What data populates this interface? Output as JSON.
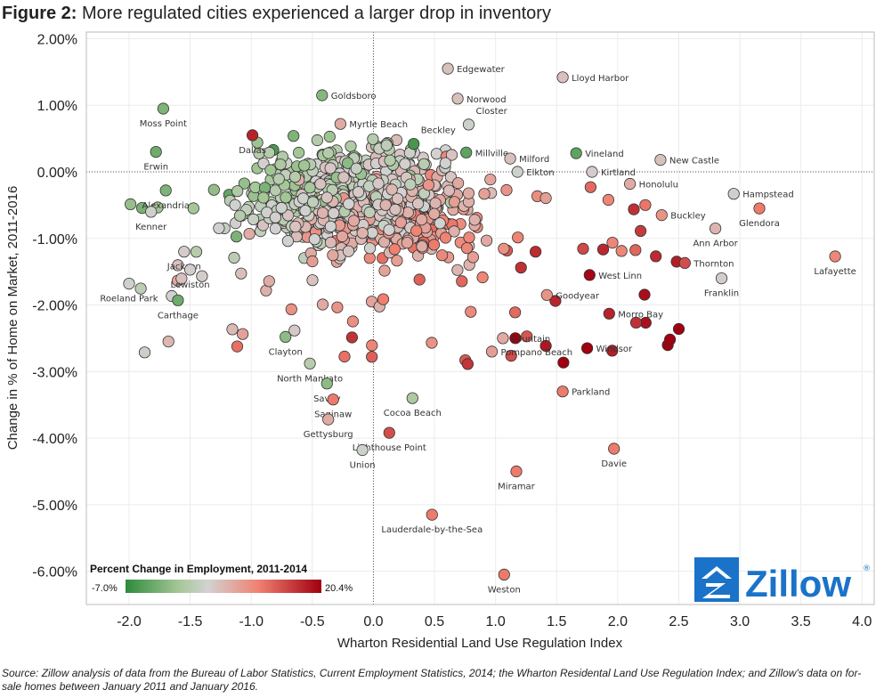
{
  "header": {
    "figure_label": "Figure 2:",
    "title_text": "More regulated cities experienced a larger drop in inventory"
  },
  "source": {
    "label": "Source:",
    "text": "Zillow analysis of data from the Bureau of Labor Statistics, Current Employment Statistics, 2014; the Wharton Residental Land Use Regulation Index; and Zillow's data on for-sale homes between January 2011 and January 2016."
  },
  "legend": {
    "title": "Percent Change in Employment, 2011-2014",
    "min_label": "-7.0%",
    "max_label": "20.4%",
    "colors": [
      "#2e8b3a",
      "#a8c89a",
      "#cccccc",
      "#f08070",
      "#a00010"
    ]
  },
  "logo": {
    "text": "Zillow",
    "color": "#1a73c9"
  },
  "chart_data": {
    "type": "scatter",
    "xlabel": "Wharton Residential Land Use Regulation Index",
    "ylabel": "Change in % of Home on Market, 2011-2016",
    "xlim": [
      -2.35,
      4.1
    ],
    "ylim": [
      -6.5,
      2.1
    ],
    "x_ticks": [
      -2.0,
      -1.5,
      -1.0,
      -0.5,
      0.0,
      0.5,
      1.0,
      1.5,
      2.0,
      2.5,
      3.0,
      3.5,
      4.0
    ],
    "x_tick_labels": [
      "-2.0",
      "-1.5",
      "-1.0",
      "-0.5",
      "0.0",
      "0.5",
      "1.0",
      "1.5",
      "2.0",
      "2.5",
      "3.0",
      "3.5",
      "4.0"
    ],
    "y_ticks": [
      2,
      1,
      0,
      -1,
      -2,
      -3,
      -4,
      -5,
      -6
    ],
    "y_tick_labels": [
      "2.00%",
      "1.00%",
      "0.00%",
      "-1.00%",
      "-2.00%",
      "-3.00%",
      "-4.00%",
      "-5.00%",
      "-6.00%"
    ],
    "reference_lines": {
      "x": 0,
      "y": 0,
      "style": "dotted"
    },
    "grid": true,
    "color_scale": {
      "variable": "Percent Change in Employment, 2011-2014",
      "min": -7.0,
      "max": 20.4
    },
    "labeled_points": [
      {
        "label": "Goldsboro",
        "x": -0.42,
        "y": 1.15,
        "e": -1.5
      },
      {
        "label": "Edgewater",
        "x": 0.61,
        "y": 1.55,
        "e": 6
      },
      {
        "label": "Norwood",
        "x": 0.69,
        "y": 1.1,
        "e": 6
      },
      {
        "label": "Lloyd Harbor",
        "x": 1.55,
        "y": 1.42,
        "e": 6
      },
      {
        "label": "Moss Point",
        "x": -1.72,
        "y": 0.95,
        "e": -2
      },
      {
        "label": "Dallas",
        "x": -0.99,
        "y": 0.55,
        "e": 18
      },
      {
        "label": "Myrtle Beach",
        "x": -0.27,
        "y": 0.72,
        "e": 8
      },
      {
        "label": "Closter",
        "x": 0.78,
        "y": 0.71,
        "e": 4
      },
      {
        "label": "Erwin",
        "x": -1.78,
        "y": 0.3,
        "e": -3
      },
      {
        "label": "Beckley",
        "x": 0.33,
        "y": 0.42,
        "e": -5.5
      },
      {
        "label": "Millville",
        "x": 0.76,
        "y": 0.29,
        "e": -4
      },
      {
        "label": "Milford",
        "x": 1.12,
        "y": 0.2,
        "e": 6
      },
      {
        "label": "Vineland",
        "x": 1.66,
        "y": 0.28,
        "e": -4
      },
      {
        "label": "New Castle",
        "x": 2.35,
        "y": 0.18,
        "e": 6
      },
      {
        "label": "Elkton",
        "x": 1.18,
        "y": 0.0,
        "e": 4
      },
      {
        "label": "Kirtland",
        "x": 1.79,
        "y": 0.0,
        "e": 5
      },
      {
        "label": "Honolulu",
        "x": 2.1,
        "y": -0.18,
        "e": 8
      },
      {
        "label": "Alexandria",
        "x": -1.7,
        "y": -0.28,
        "e": -2
      },
      {
        "label": "Hampstead",
        "x": 2.95,
        "y": -0.33,
        "e": 4
      },
      {
        "label": "Kenner",
        "x": -1.82,
        "y": -0.6,
        "e": 4
      },
      {
        "label": "Buckley",
        "x": 2.36,
        "y": -0.65,
        "e": 10
      },
      {
        "label": "Glendora",
        "x": 3.16,
        "y": -0.55,
        "e": 12
      },
      {
        "label": "Ann Arbor",
        "x": 2.8,
        "y": -0.85,
        "e": 7
      },
      {
        "label": "Jackson",
        "x": -1.55,
        "y": -1.2,
        "e": 5
      },
      {
        "label": "Thornton",
        "x": 2.55,
        "y": -1.37,
        "e": 15
      },
      {
        "label": "Lafayette",
        "x": 3.78,
        "y": -1.27,
        "e": 11
      },
      {
        "label": "Lewiston",
        "x": -1.5,
        "y": -1.47,
        "e": 5
      },
      {
        "label": "West Linn",
        "x": 1.77,
        "y": -1.55,
        "e": 20
      },
      {
        "label": "Franklin",
        "x": 2.85,
        "y": -1.6,
        "e": 5
      },
      {
        "label": "Goodyear",
        "x": 1.42,
        "y": -1.85,
        "e": 10
      },
      {
        "label": "Roeland Park",
        "x": -2.0,
        "y": -1.68,
        "e": 4
      },
      {
        "label": "Carthage",
        "x": -1.6,
        "y": -1.93,
        "e": -3
      },
      {
        "label": "Morro Bay",
        "x": 1.93,
        "y": -2.13,
        "e": 18
      },
      {
        "label": "Fountain",
        "x": 1.06,
        "y": -2.5,
        "e": 8
      },
      {
        "label": "Clayton",
        "x": -0.72,
        "y": -2.48,
        "e": -1
      },
      {
        "label": "Windsor",
        "x": 1.75,
        "y": -2.65,
        "e": 20.4
      },
      {
        "label": "Pompano Beach",
        "x": 0.97,
        "y": -2.7,
        "e": 9
      },
      {
        "label": "North Mankato",
        "x": -0.52,
        "y": -2.88,
        "e": 2
      },
      {
        "label": "Savoy",
        "x": -0.38,
        "y": -3.18,
        "e": -1
      },
      {
        "label": "Saginaw",
        "x": -0.33,
        "y": -3.42,
        "e": 12
      },
      {
        "label": "Cocoa Beach",
        "x": 0.32,
        "y": -3.4,
        "e": 1
      },
      {
        "label": "Parkland",
        "x": 1.55,
        "y": -3.3,
        "e": 12
      },
      {
        "label": "Gettysburg",
        "x": -0.37,
        "y": -3.72,
        "e": 8
      },
      {
        "label": "Lighthouse Point",
        "x": 0.13,
        "y": -3.92,
        "e": 15
      },
      {
        "label": "Union",
        "x": -0.09,
        "y": -4.18,
        "e": 4
      },
      {
        "label": "Davie",
        "x": 1.97,
        "y": -4.16,
        "e": 12
      },
      {
        "label": "Miramar",
        "x": 1.17,
        "y": -4.5,
        "e": 12
      },
      {
        "label": "Lauderdale-by-the-Sea",
        "x": 0.48,
        "y": -5.15,
        "e": 12
      },
      {
        "label": "Weston",
        "x": 1.07,
        "y": -6.05,
        "e": 12
      }
    ]
  }
}
